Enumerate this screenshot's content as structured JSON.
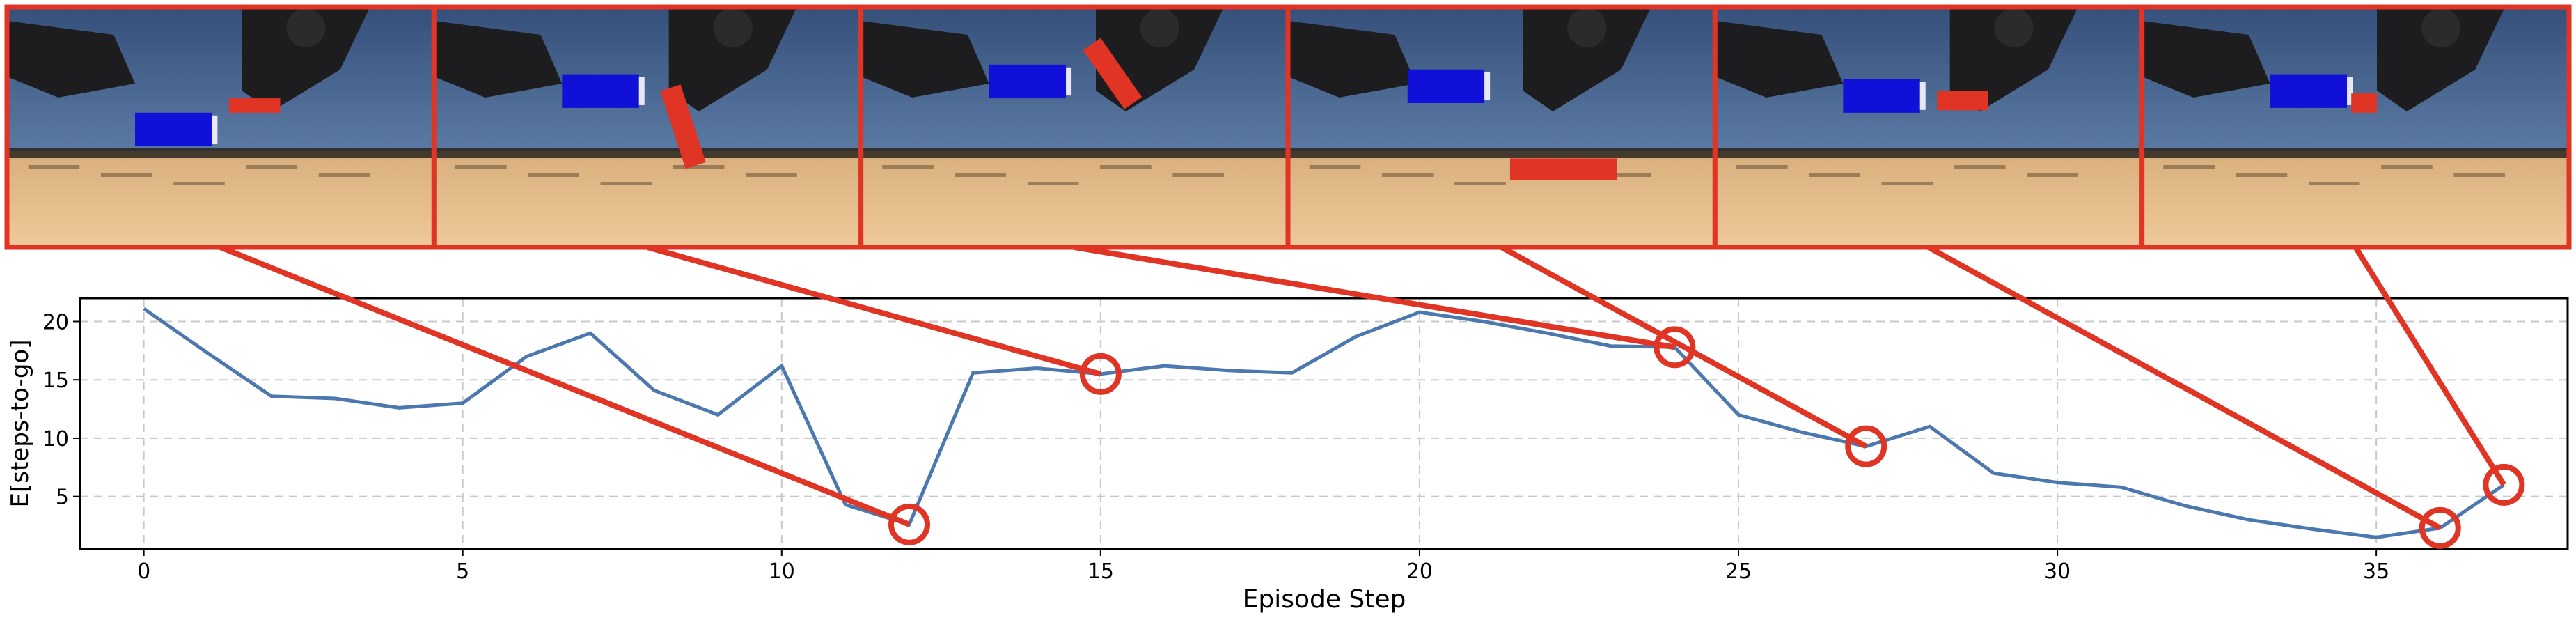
{
  "chart_data": {
    "type": "line",
    "xlabel": "Episode Step",
    "ylabel": "E[steps-to-go]",
    "xlim": [
      -1,
      38
    ],
    "ylim": [
      0.5,
      22
    ],
    "xticks": [
      0,
      5,
      10,
      15,
      20,
      25,
      30,
      35
    ],
    "yticks": [
      5,
      10,
      15,
      20
    ],
    "grid": true,
    "line_color": "#4c78b0",
    "highlight_color": "#e03525",
    "x": [
      0,
      1,
      2,
      3,
      4,
      5,
      6,
      7,
      8,
      9,
      10,
      11,
      12,
      13,
      14,
      15,
      16,
      17,
      18,
      19,
      20,
      21,
      22,
      23,
      24,
      25,
      26,
      27,
      28,
      29,
      30,
      31,
      32,
      33,
      34,
      35,
      36,
      37
    ],
    "values": [
      21.1,
      17.3,
      13.6,
      13.4,
      12.6,
      13.0,
      17.0,
      19.0,
      14.1,
      12.0,
      16.2,
      4.3,
      2.6,
      15.6,
      16.0,
      15.5,
      16.2,
      15.8,
      15.6,
      18.7,
      20.8,
      20.0,
      19.0,
      17.9,
      17.8,
      12.0,
      10.5,
      9.3,
      11.0,
      7.0,
      6.2,
      5.8,
      4.2,
      3.0,
      2.2,
      1.5,
      2.3,
      6.0
    ],
    "highlighted_steps": [
      12,
      15,
      24,
      27,
      36,
      37
    ]
  },
  "frames": {
    "count": 6,
    "descriptions": [
      "frame-step-12",
      "frame-step-15",
      "frame-step-24",
      "frame-step-27",
      "frame-step-36",
      "frame-step-37"
    ]
  }
}
